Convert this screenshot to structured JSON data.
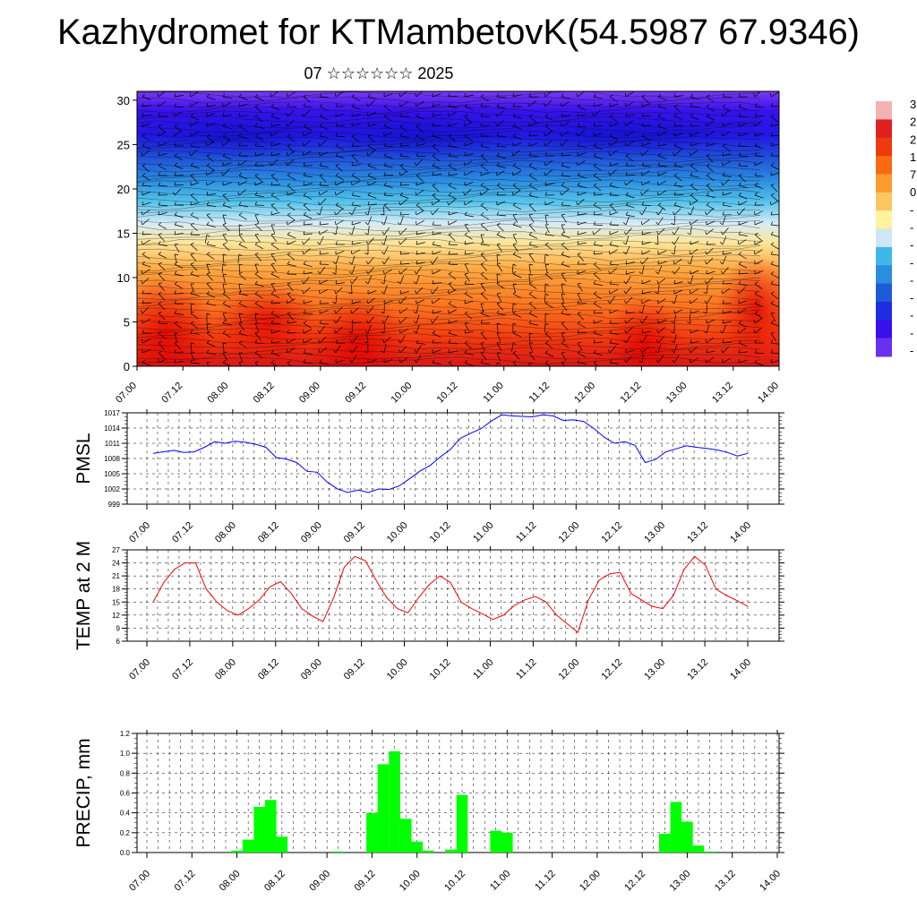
{
  "title": "Kazhydromet for KTMambetovK(54.5987 67.9346)",
  "subtitle": "07 ☆☆☆☆☆☆ 2025",
  "time_labels": [
    "07.00",
    "07.12",
    "08.00",
    "08.12",
    "09.00",
    "09.12",
    "10.00",
    "10.12",
    "11.00",
    "11.12",
    "12.00",
    "12.12",
    "13.00",
    "13.12",
    "14.00"
  ],
  "colorbar": {
    "labels": [
      "3",
      "2",
      "2",
      "1",
      "7",
      "0",
      "-",
      "-",
      "-",
      "-",
      "-",
      "-",
      "-",
      "-",
      "-"
    ],
    "colors": [
      "#f2b3b3",
      "#e02020",
      "#ee3a10",
      "#fb6a10",
      "#fd9a30",
      "#fdc560",
      "#fff3a0",
      "#cfe7f4",
      "#3fb7e8",
      "#2a8de0",
      "#1e5bd8",
      "#1e2ee0",
      "#3a10ec",
      "#6a30f0"
    ]
  },
  "chart_data": [
    {
      "type": "heatmap",
      "title": "",
      "xlabel": "",
      "ylabel": "",
      "x": [
        "07.00",
        "07.12",
        "08.00",
        "08.12",
        "09.00",
        "09.12",
        "10.00",
        "10.12",
        "11.00",
        "11.12",
        "12.00",
        "12.12",
        "13.00",
        "13.12",
        "14.00"
      ],
      "yticks": [
        0,
        5,
        10,
        15,
        20,
        25,
        30
      ],
      "ylim": [
        0,
        31
      ],
      "overlay": "wind barbs",
      "temperature_by_level": [
        {
          "level": 0,
          "value": 25
        },
        {
          "level": 5,
          "value": 20
        },
        {
          "level": 10,
          "value": 10
        },
        {
          "level": 15,
          "value": 0
        },
        {
          "level": 20,
          "value": -25
        },
        {
          "level": 25,
          "value": -50
        },
        {
          "level": 30,
          "value": -45
        }
      ]
    },
    {
      "type": "line",
      "title": "",
      "xlabel": "",
      "ylabel": "PMSL",
      "color": "#0000ff",
      "ylim": [
        999,
        1017
      ],
      "yticks": [
        999,
        1002,
        1005,
        1008,
        1011,
        1014,
        1017
      ],
      "x_step_hours": 3,
      "values": [
        1009,
        1009.3,
        1009.6,
        1009.2,
        1009.3,
        1010.2,
        1011.3,
        1011.0,
        1011.4,
        1011.2,
        1010.8,
        1010.2,
        1008.2,
        1007.9,
        1007.2,
        1005.5,
        1005.3,
        1003.3,
        1002,
        1001.3,
        1001.8,
        1001.3,
        1002,
        1001.9,
        1002.6,
        1004,
        1005.5,
        1006.6,
        1008.3,
        1009.8,
        1012,
        1013,
        1013.9,
        1015.4,
        1016.6,
        1016.4,
        1016.3,
        1016.2,
        1016.6,
        1016.4,
        1015.5,
        1015.6,
        1015.3,
        1013.9,
        1012.2,
        1011,
        1011.3,
        1010.6,
        1007.2,
        1007.8,
        1009.3,
        1009.9,
        1010.5,
        1010.2,
        1010,
        1009.7,
        1009.2,
        1008.5,
        1009
      ]
    },
    {
      "type": "line",
      "title": "",
      "xlabel": "",
      "ylabel": "TEMP at 2 M",
      "color": "#ff0000",
      "ylim": [
        6,
        27
      ],
      "yticks": [
        6,
        9,
        12,
        15,
        18,
        21,
        24,
        27
      ],
      "x_step_hours": 6,
      "values": [
        15,
        19.5,
        22.5,
        24,
        24,
        18,
        15,
        13,
        12,
        13.5,
        15.5,
        18.5,
        19.7,
        17,
        13.5,
        11.8,
        10.5,
        16,
        23,
        25.5,
        24.5,
        20,
        16,
        13.5,
        12.5,
        16,
        19,
        21,
        19.5,
        15,
        13.5,
        12.3,
        11,
        12,
        14.2,
        15.5,
        16.3,
        15,
        12,
        10,
        8,
        15.5,
        20,
        21.5,
        21.8,
        17,
        15.5,
        14,
        13.5,
        16.5,
        22.5,
        25.5,
        23.5,
        18,
        16.5,
        15.3,
        14
      ]
    },
    {
      "type": "bar",
      "title": "",
      "xlabel": "",
      "ylabel": "PRECIP, mm",
      "color": "#00ff00",
      "ylim": [
        0,
        1.2
      ],
      "yticks": [
        0.0,
        0.2,
        0.4,
        0.6,
        0.8,
        1.0,
        1.2
      ],
      "x_step_hours": 3,
      "values": [
        0,
        0,
        0,
        0,
        0,
        0,
        0,
        0,
        0.02,
        0.13,
        0.46,
        0.53,
        0.16,
        0,
        0,
        0,
        0,
        0.01,
        0,
        0,
        0.4,
        0.89,
        1.02,
        0.34,
        0.11,
        0.02,
        0,
        0.03,
        0.58,
        0,
        0,
        0.22,
        0.2,
        0,
        0,
        0,
        0,
        0,
        0,
        0,
        0,
        0,
        0,
        0,
        0,
        0,
        0.19,
        0.51,
        0.31,
        0.07,
        0.01,
        0,
        0,
        0,
        0,
        0
      ]
    }
  ]
}
